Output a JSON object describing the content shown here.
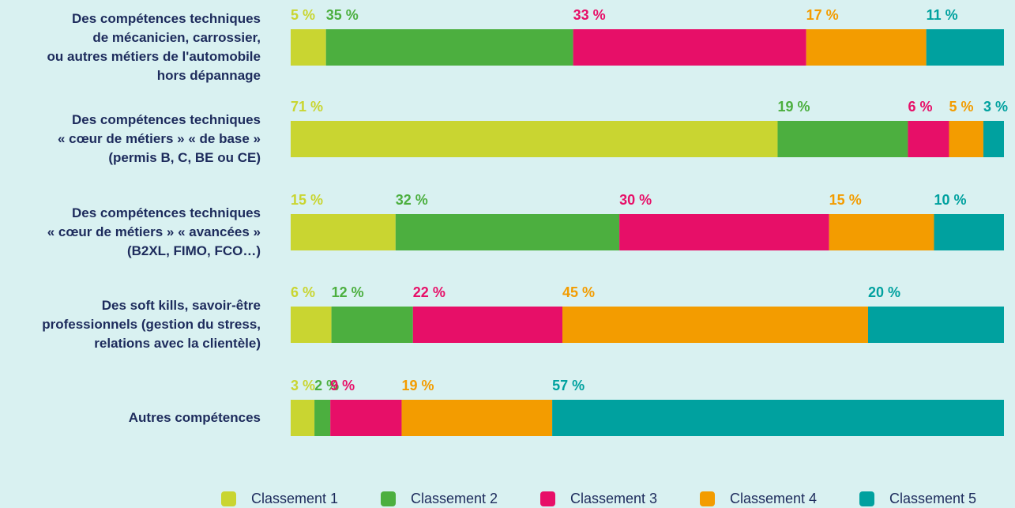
{
  "chart_data": {
    "type": "bar",
    "orientation": "horizontal",
    "stacked": true,
    "normalized": true,
    "categories": [
      "Des compétences techniques\nde mécanicien, carrossier,\nou autres métiers de l'automobile\nhors dépannage",
      "Des compétences techniques\n« cœur de métiers » « de base »\n(permis B, C, BE  ou CE)",
      "Des compétences techniques\n« cœur de métiers » « avancées »\n(B2XL,  FIMO, FCO…)",
      "Des soft kills, savoir-être\nprofessionnels (gestion du stress,\nrelations avec la clientèle)",
      "Autres compétences"
    ],
    "series": [
      {
        "name": "Classement 1",
        "color": "#c9d531",
        "values": [
          5,
          71,
          15,
          6,
          3
        ],
        "value_labels": [
          "5 %",
          "71 %",
          "15 %",
          "6 %",
          "3 %"
        ]
      },
      {
        "name": "Classement 2",
        "color": "#4caf3f",
        "values": [
          35,
          19,
          32,
          12,
          2
        ],
        "value_labels": [
          "35 %",
          "19 %",
          "32 %",
          "12 %",
          "2 %"
        ]
      },
      {
        "name": "Classement 3",
        "color": "#e70f68",
        "values": [
          33,
          6,
          30,
          22,
          9
        ],
        "value_labels": [
          "33 %",
          "6 %",
          "30 %",
          "22 %",
          "9 %"
        ]
      },
      {
        "name": "Classement 4",
        "color": "#f39c00",
        "values": [
          17,
          5,
          15,
          45,
          19
        ],
        "value_labels": [
          "17 %",
          "5 %",
          "15 %",
          "45 %",
          "19 %"
        ]
      },
      {
        "name": "Classement 5",
        "color": "#00a19f",
        "values": [
          11,
          3,
          10,
          20,
          57
        ],
        "value_labels": [
          "11 %",
          "3 %",
          "10 %",
          "20 %",
          "57 %"
        ]
      }
    ],
    "legend": "bottom"
  }
}
